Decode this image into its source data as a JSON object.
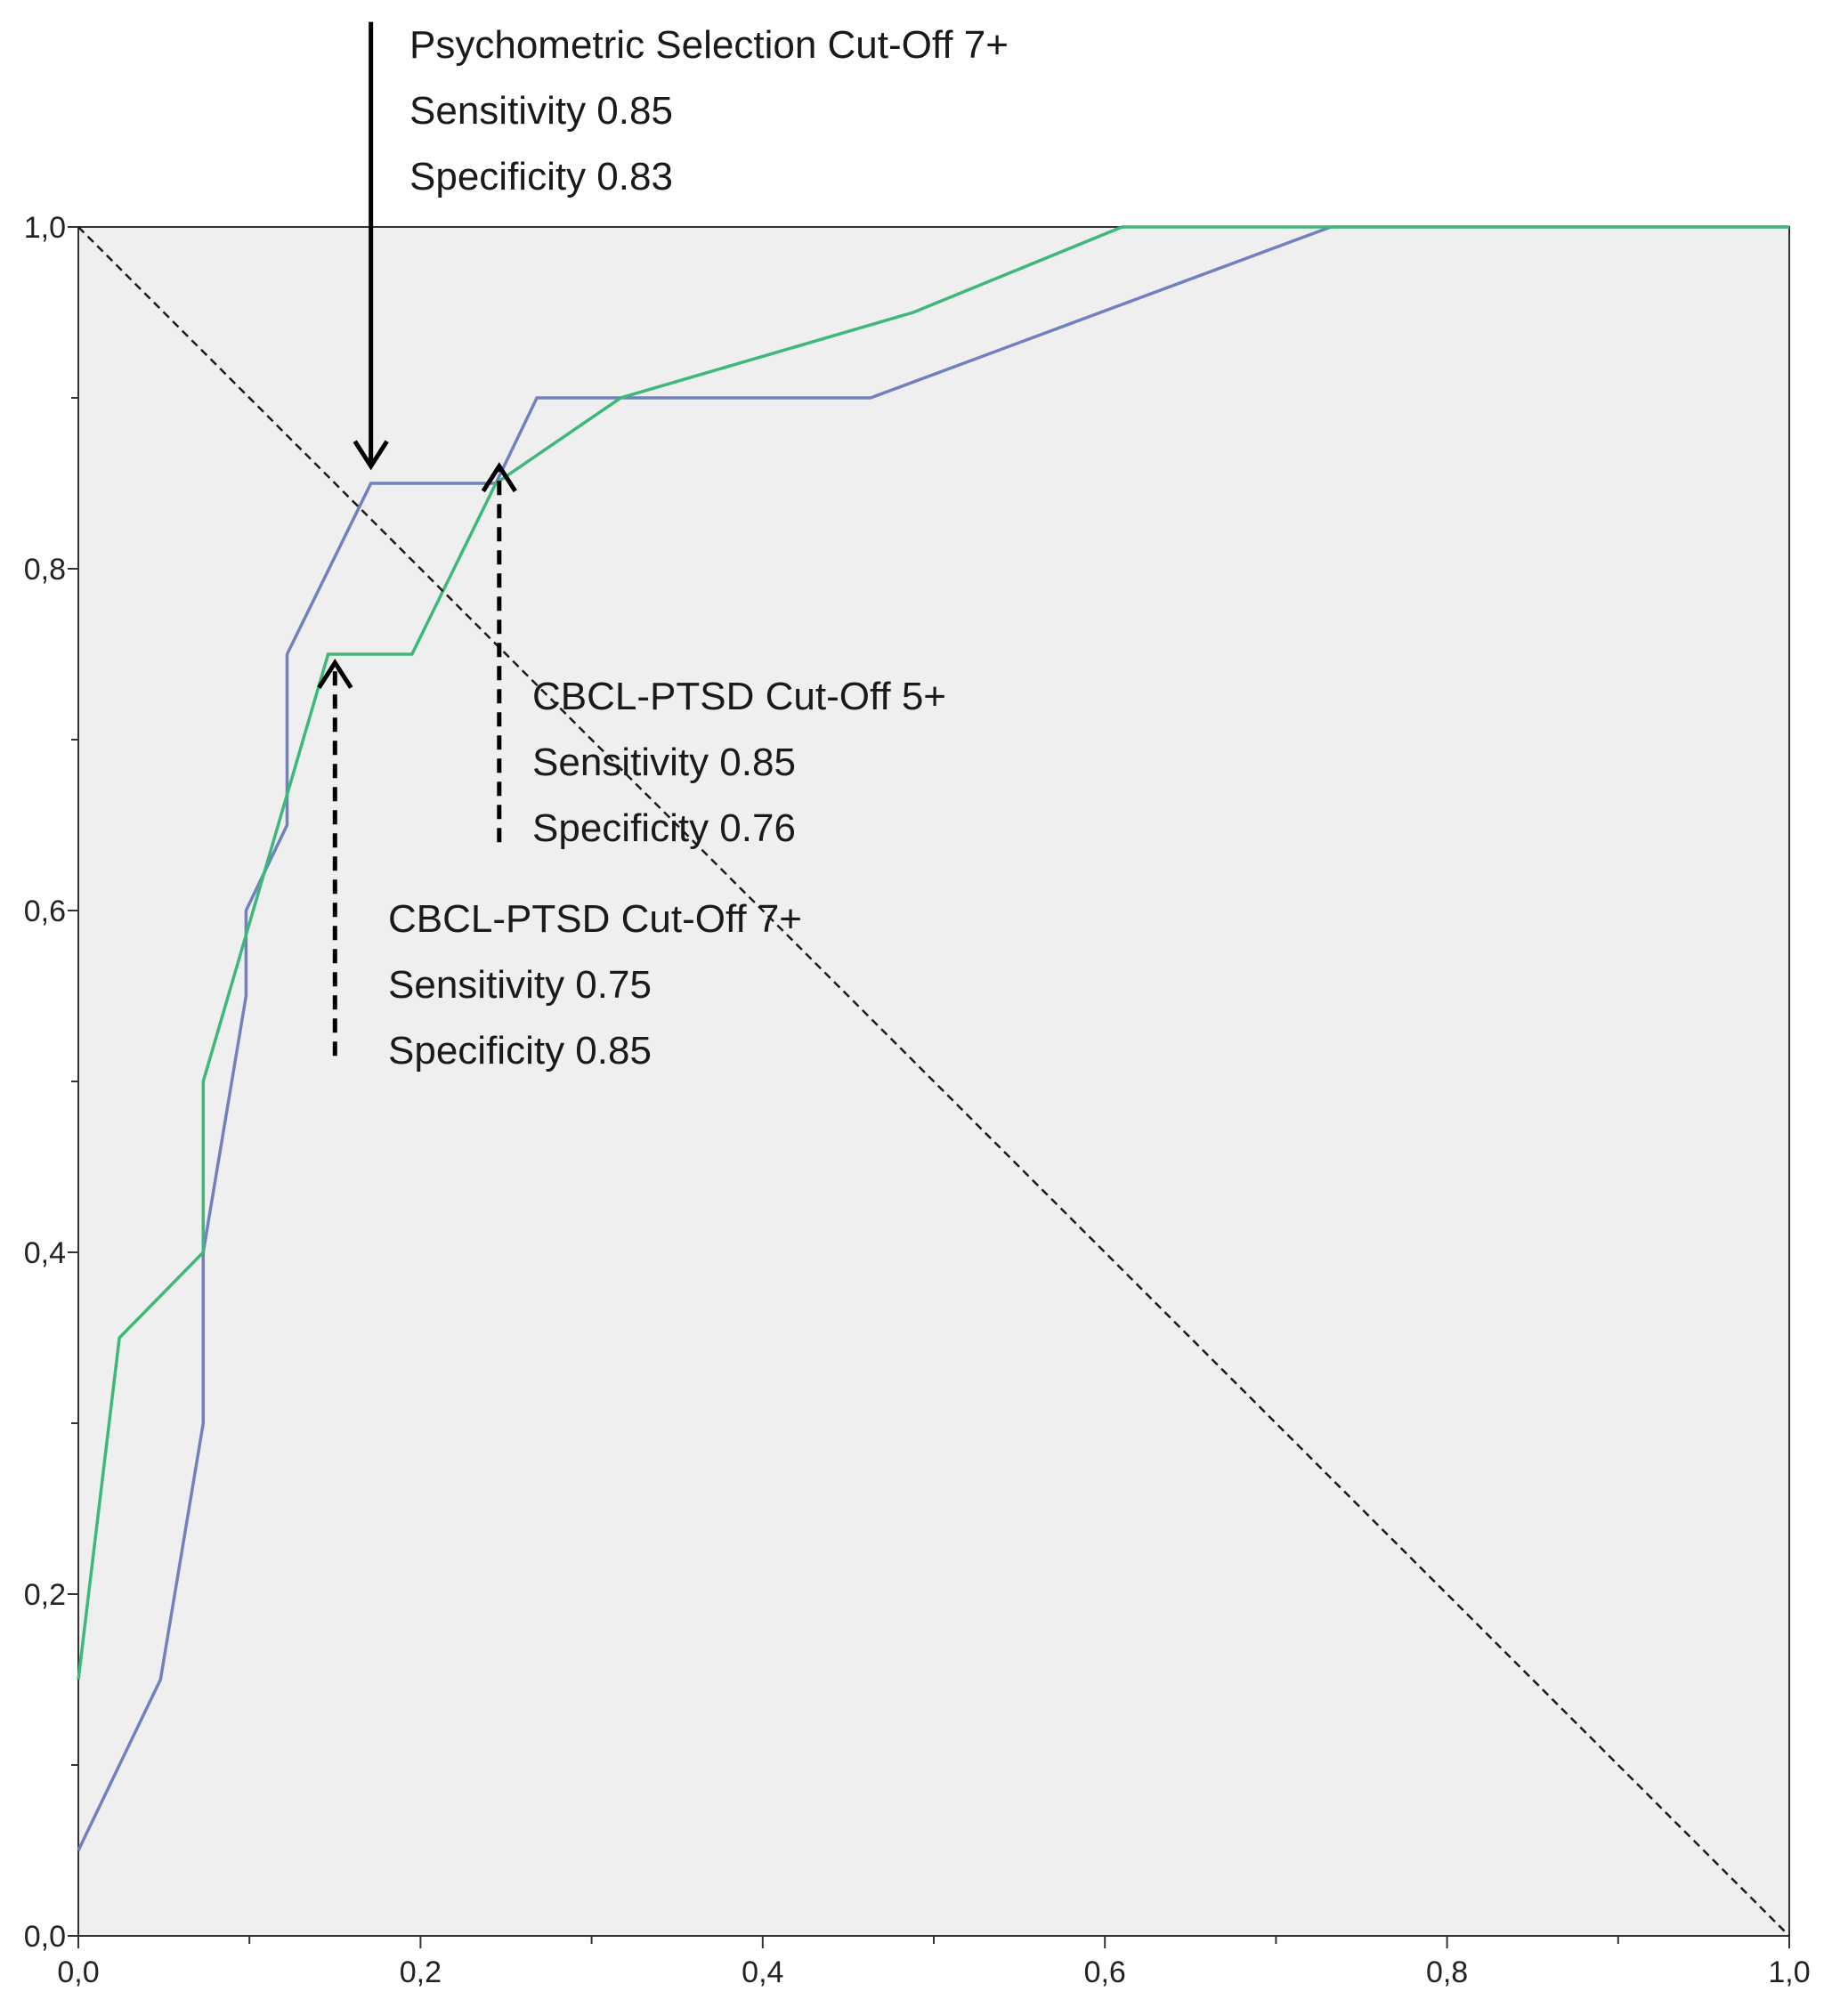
{
  "chart_data": {
    "type": "line",
    "title": "",
    "xlabel": "",
    "ylabel": "",
    "xlim": [
      0,
      1
    ],
    "ylim": [
      0,
      1
    ],
    "grid": false,
    "background_color": "#efefef",
    "x_ticks": [
      {
        "value": 0.0,
        "label": "0,0"
      },
      {
        "value": 0.2,
        "label": "0,2"
      },
      {
        "value": 0.4,
        "label": "0,4"
      },
      {
        "value": 0.6,
        "label": "0,6"
      },
      {
        "value": 0.8,
        "label": "0,8"
      },
      {
        "value": 1.0,
        "label": "1,0"
      }
    ],
    "x_minor_ticks": [
      0.1,
      0.3,
      0.5,
      0.7,
      0.9
    ],
    "y_ticks": [
      {
        "value": 0.0,
        "label": "0,0"
      },
      {
        "value": 0.2,
        "label": "0,2"
      },
      {
        "value": 0.4,
        "label": "0,4"
      },
      {
        "value": 0.6,
        "label": "0,6"
      },
      {
        "value": 0.8,
        "label": "0,8"
      },
      {
        "value": 1.0,
        "label": "1,0"
      }
    ],
    "y_minor_ticks": [
      0.1,
      0.3,
      0.5,
      0.7,
      0.9
    ],
    "series": [
      {
        "color": "#7080c0",
        "points": [
          [
            0.0,
            0.05
          ],
          [
            0.048,
            0.15
          ],
          [
            0.073,
            0.3
          ],
          [
            0.073,
            0.4
          ],
          [
            0.098,
            0.55
          ],
          [
            0.098,
            0.6
          ],
          [
            0.122,
            0.65
          ],
          [
            0.122,
            0.75
          ],
          [
            0.171,
            0.85
          ],
          [
            0.244,
            0.85
          ],
          [
            0.268,
            0.9
          ],
          [
            0.463,
            0.9
          ],
          [
            0.732,
            1.0
          ],
          [
            1.0,
            1.0
          ]
        ]
      },
      {
        "color": "#3cb878",
        "points": [
          [
            0.0,
            0.15
          ],
          [
            0.024,
            0.35
          ],
          [
            0.073,
            0.4
          ],
          [
            0.073,
            0.5
          ],
          [
            0.146,
            0.75
          ],
          [
            0.195,
            0.75
          ],
          [
            0.244,
            0.85
          ],
          [
            0.317,
            0.9
          ],
          [
            0.488,
            0.95
          ],
          [
            0.61,
            1.0
          ],
          [
            1.0,
            1.0
          ]
        ]
      },
      {
        "color": "#1a1a1a",
        "style": "dashed",
        "points": [
          [
            0.0,
            1.0
          ],
          [
            1.0,
            0.0
          ]
        ]
      }
    ],
    "annotations": [
      {
        "lines": [
          "Psychometric Selection Cut-Off 7+",
          "Sensitivity 0.85",
          "Specificity 0.83"
        ],
        "arrow": {
          "style": "solid",
          "x": 0.171,
          "from_y": 1.12,
          "to_y": 0.86
        }
      },
      {
        "lines": [
          "CBCL-PTSD Cut-Off 5+",
          "Sensitivity 0.85",
          "Specificity 0.76"
        ],
        "arrow": {
          "style": "dashed",
          "x": 0.246,
          "from_y": 0.64,
          "to_y": 0.86
        }
      },
      {
        "lines": [
          "CBCL-PTSD Cut-Off 7+",
          "Sensitivity 0.75",
          "Specificity 0.85"
        ],
        "arrow": {
          "style": "dashed",
          "x": 0.15,
          "from_y": 0.515,
          "to_y": 0.745
        }
      }
    ]
  }
}
